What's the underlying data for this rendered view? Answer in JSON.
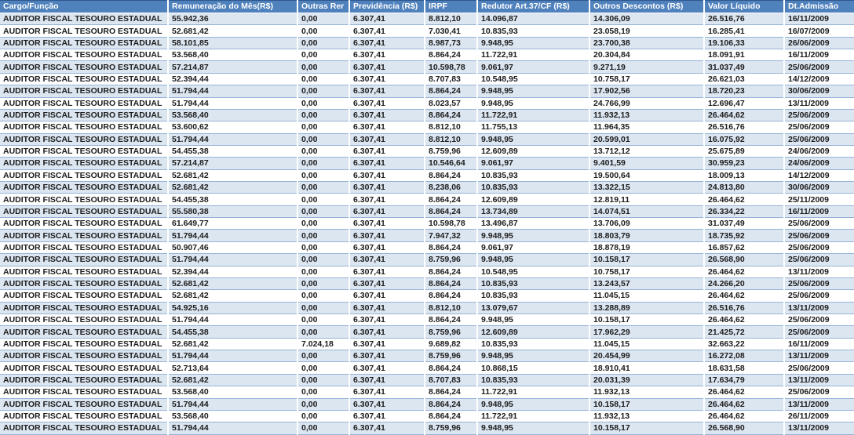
{
  "colors": {
    "header_bg": "#4F81BD",
    "header_text": "#FFFFFF",
    "band_row_bg": "#DCE6F1",
    "plain_row_bg": "#FFFFFF",
    "row_border": "#95B3D7",
    "header_top_border": "#30588C",
    "body_text": "#1C1C1C"
  },
  "table": {
    "columns": [
      {
        "key": "cargo",
        "label": "Cargo/Função"
      },
      {
        "key": "remuneracao",
        "label": "Remuneração do Mês(R$)"
      },
      {
        "key": "outras",
        "label": "Outras Rer"
      },
      {
        "key": "previdencia",
        "label": "Previdência (R$)"
      },
      {
        "key": "irpf",
        "label": "IRPF"
      },
      {
        "key": "redutor",
        "label": "Redutor Art.37/CF (R$)"
      },
      {
        "key": "descontos",
        "label": "Outros Descontos (R$)"
      },
      {
        "key": "liquido",
        "label": "Valor Líquido"
      },
      {
        "key": "admissao",
        "label": "Dt.Admissão"
      }
    ],
    "rows": [
      [
        "AUDITOR FISCAL TESOURO ESTADUAL",
        "55.942,36",
        "0,00",
        "6.307,41",
        "8.812,10",
        "14.096,87",
        "14.306,09",
        "26.516,76",
        "16/11/2009"
      ],
      [
        "AUDITOR FISCAL TESOURO ESTADUAL",
        "52.681,42",
        "0,00",
        "6.307,41",
        "7.030,41",
        "10.835,93",
        "23.058,19",
        "16.285,41",
        "16/07/2009"
      ],
      [
        "AUDITOR FISCAL TESOURO ESTADUAL",
        "58.101,85",
        "0,00",
        "6.307,41",
        "8.987,73",
        "9.948,95",
        "23.700,38",
        "19.106,33",
        "26/06/2009"
      ],
      [
        "AUDITOR FISCAL TESOURO ESTADUAL",
        "53.568,40",
        "0,00",
        "6.307,41",
        "8.864,24",
        "11.722,91",
        "20.304,84",
        "18.091,91",
        "16/11/2009"
      ],
      [
        "AUDITOR FISCAL TESOURO ESTADUAL",
        "57.214,87",
        "0,00",
        "6.307,41",
        "10.598,78",
        "9.061,97",
        "9.271,19",
        "31.037,49",
        "25/06/2009"
      ],
      [
        "AUDITOR FISCAL TESOURO ESTADUAL",
        "52.394,44",
        "0,00",
        "6.307,41",
        "8.707,83",
        "10.548,95",
        "10.758,17",
        "26.621,03",
        "14/12/2009"
      ],
      [
        "AUDITOR FISCAL TESOURO ESTADUAL",
        "51.794,44",
        "0,00",
        "6.307,41",
        "8.864,24",
        "9.948,95",
        "17.902,56",
        "18.720,23",
        "30/06/2009"
      ],
      [
        "AUDITOR FISCAL TESOURO ESTADUAL",
        "51.794,44",
        "0,00",
        "6.307,41",
        "8.023,57",
        "9.948,95",
        "24.766,99",
        "12.696,47",
        "13/11/2009"
      ],
      [
        "AUDITOR FISCAL TESOURO ESTADUAL",
        "53.568,40",
        "0,00",
        "6.307,41",
        "8.864,24",
        "11.722,91",
        "11.932,13",
        "26.464,62",
        "25/06/2009"
      ],
      [
        "AUDITOR FISCAL TESOURO ESTADUAL",
        "53.600,62",
        "0,00",
        "6.307,41",
        "8.812,10",
        "11.755,13",
        "11.964,35",
        "26.516,76",
        "25/06/2009"
      ],
      [
        "AUDITOR FISCAL TESOURO ESTADUAL",
        "51.794,44",
        "0,00",
        "6.307,41",
        "8.812,10",
        "9.948,95",
        "20.599,01",
        "16.075,92",
        "25/06/2009"
      ],
      [
        "AUDITOR FISCAL TESOURO ESTADUAL",
        "54.455,38",
        "0,00",
        "6.307,41",
        "8.759,96",
        "12.609,89",
        "13.712,12",
        "25.675,89",
        "24/06/2009"
      ],
      [
        "AUDITOR FISCAL TESOURO ESTADUAL",
        "57.214,87",
        "0,00",
        "6.307,41",
        "10.546,64",
        "9.061,97",
        "9.401,59",
        "30.959,23",
        "24/06/2009"
      ],
      [
        "AUDITOR FISCAL TESOURO ESTADUAL",
        "52.681,42",
        "0,00",
        "6.307,41",
        "8.864,24",
        "10.835,93",
        "19.500,64",
        "18.009,13",
        "14/12/2009"
      ],
      [
        "AUDITOR FISCAL TESOURO ESTADUAL",
        "52.681,42",
        "0,00",
        "6.307,41",
        "8.238,06",
        "10.835,93",
        "13.322,15",
        "24.813,80",
        "30/06/2009"
      ],
      [
        "AUDITOR FISCAL TESOURO ESTADUAL",
        "54.455,38",
        "0,00",
        "6.307,41",
        "8.864,24",
        "12.609,89",
        "12.819,11",
        "26.464,62",
        "25/11/2009"
      ],
      [
        "AUDITOR FISCAL TESOURO ESTADUAL",
        "55.580,38",
        "0,00",
        "6.307,41",
        "8.864,24",
        "13.734,89",
        "14.074,51",
        "26.334,22",
        "16/11/2009"
      ],
      [
        "AUDITOR FISCAL TESOURO ESTADUAL",
        "61.649,77",
        "0,00",
        "6.307,41",
        "10.598,78",
        "13.496,87",
        "13.706,09",
        "31.037,49",
        "25/06/2009"
      ],
      [
        "AUDITOR FISCAL TESOURO ESTADUAL",
        "51.794,44",
        "0,00",
        "6.307,41",
        "7.947,32",
        "9.948,95",
        "18.803,79",
        "18.735,92",
        "25/06/2009"
      ],
      [
        "AUDITOR FISCAL TESOURO ESTADUAL",
        "50.907,46",
        "0,00",
        "6.307,41",
        "8.864,24",
        "9.061,97",
        "18.878,19",
        "16.857,62",
        "25/06/2009"
      ],
      [
        "AUDITOR FISCAL TESOURO ESTADUAL",
        "51.794,44",
        "0,00",
        "6.307,41",
        "8.759,96",
        "9.948,95",
        "10.158,17",
        "26.568,90",
        "25/06/2009"
      ],
      [
        "AUDITOR FISCAL TESOURO ESTADUAL",
        "52.394,44",
        "0,00",
        "6.307,41",
        "8.864,24",
        "10.548,95",
        "10.758,17",
        "26.464,62",
        "13/11/2009"
      ],
      [
        "AUDITOR FISCAL TESOURO ESTADUAL",
        "52.681,42",
        "0,00",
        "6.307,41",
        "8.864,24",
        "10.835,93",
        "13.243,57",
        "24.266,20",
        "25/06/2009"
      ],
      [
        "AUDITOR FISCAL TESOURO ESTADUAL",
        "52.681,42",
        "0,00",
        "6.307,41",
        "8.864,24",
        "10.835,93",
        "11.045,15",
        "26.464,62",
        "25/06/2009"
      ],
      [
        "AUDITOR FISCAL TESOURO ESTADUAL",
        "54.925,16",
        "0,00",
        "6.307,41",
        "8.812,10",
        "13.079,67",
        "13.288,89",
        "26.516,76",
        "13/11/2009"
      ],
      [
        "AUDITOR FISCAL TESOURO ESTADUAL",
        "51.794,44",
        "0,00",
        "6.307,41",
        "8.864,24",
        "9.948,95",
        "10.158,17",
        "26.464,62",
        "25/06/2009"
      ],
      [
        "AUDITOR FISCAL TESOURO ESTADUAL",
        "54.455,38",
        "0,00",
        "6.307,41",
        "8.759,96",
        "12.609,89",
        "17.962,29",
        "21.425,72",
        "25/06/2009"
      ],
      [
        "AUDITOR FISCAL TESOURO ESTADUAL",
        "52.681,42",
        "7.024,18",
        "6.307,41",
        "9.689,82",
        "10.835,93",
        "11.045,15",
        "32.663,22",
        "16/11/2009"
      ],
      [
        "AUDITOR FISCAL TESOURO ESTADUAL",
        "51.794,44",
        "0,00",
        "6.307,41",
        "8.759,96",
        "9.948,95",
        "20.454,99",
        "16.272,08",
        "13/11/2009"
      ],
      [
        "AUDITOR FISCAL TESOURO ESTADUAL",
        "52.713,64",
        "0,00",
        "6.307,41",
        "8.864,24",
        "10.868,15",
        "18.910,41",
        "18.631,58",
        "25/06/2009"
      ],
      [
        "AUDITOR FISCAL TESOURO ESTADUAL",
        "52.681,42",
        "0,00",
        "6.307,41",
        "8.707,83",
        "10.835,93",
        "20.031,39",
        "17.634,79",
        "13/11/2009"
      ],
      [
        "AUDITOR FISCAL TESOURO ESTADUAL",
        "53.568,40",
        "0,00",
        "6.307,41",
        "8.864,24",
        "11.722,91",
        "11.932,13",
        "26.464,62",
        "25/06/2009"
      ],
      [
        "AUDITOR FISCAL TESOURO ESTADUAL",
        "51.794,44",
        "0,00",
        "6.307,41",
        "8.864,24",
        "9.948,95",
        "10.158,17",
        "26.464,62",
        "13/11/2009"
      ],
      [
        "AUDITOR FISCAL TESOURO ESTADUAL",
        "53.568,40",
        "0,00",
        "6.307,41",
        "8.864,24",
        "11.722,91",
        "11.932,13",
        "26.464,62",
        "26/11/2009"
      ],
      [
        "AUDITOR FISCAL TESOURO ESTADUAL",
        "51.794,44",
        "0,00",
        "6.307,41",
        "8.759,96",
        "9.948,95",
        "10.158,17",
        "26.568,90",
        "13/11/2009"
      ]
    ]
  }
}
